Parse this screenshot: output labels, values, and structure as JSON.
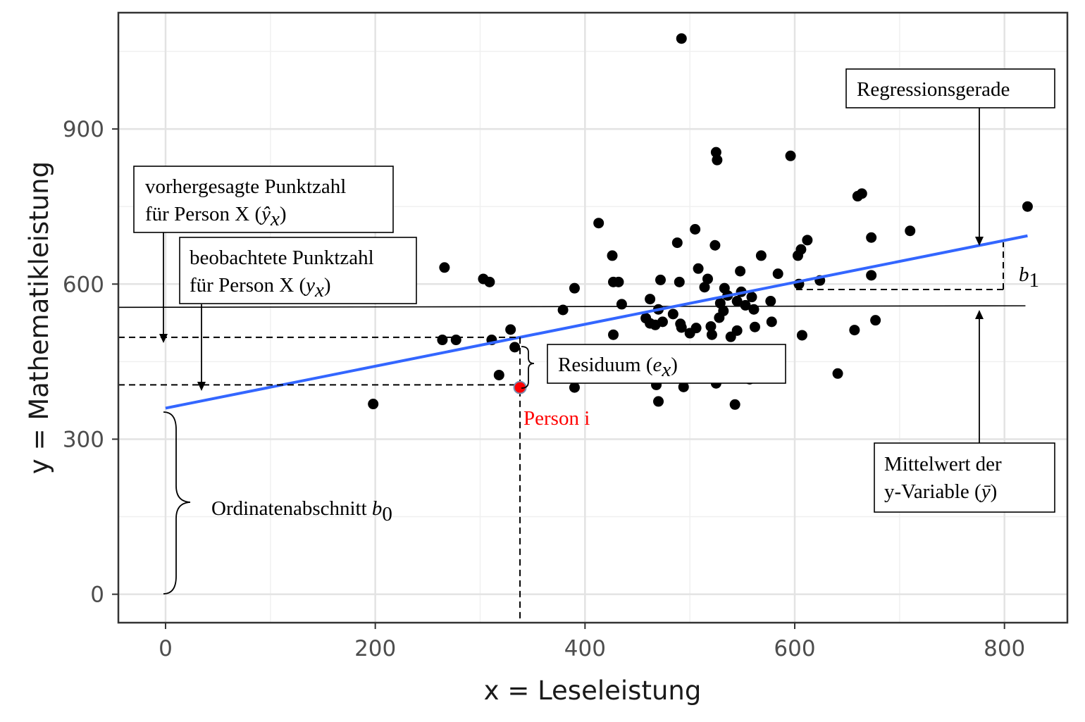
{
  "chart_data": {
    "type": "scatter",
    "xlabel": "x = Leseleistung",
    "ylabel": "y = Mathematikleistung",
    "xlim": [
      -45,
      860
    ],
    "ylim": [
      -55,
      1125
    ],
    "x_ticks": [
      0,
      200,
      400,
      600,
      800
    ],
    "y_ticks": [
      0,
      300,
      600,
      900
    ],
    "grid": true,
    "points": [
      [
        492,
        1075
      ],
      [
        525,
        855
      ],
      [
        526,
        840
      ],
      [
        596,
        848
      ],
      [
        660,
        770
      ],
      [
        664,
        775
      ],
      [
        822,
        750
      ],
      [
        710,
        703
      ],
      [
        413,
        718
      ],
      [
        505,
        706
      ],
      [
        488,
        680
      ],
      [
        524,
        675
      ],
      [
        673,
        690
      ],
      [
        612,
        685
      ],
      [
        606,
        667
      ],
      [
        603,
        655
      ],
      [
        426,
        655
      ],
      [
        266,
        632
      ],
      [
        303,
        610
      ],
      [
        309,
        604
      ],
      [
        427,
        604
      ],
      [
        432,
        604
      ],
      [
        390,
        592
      ],
      [
        472,
        608
      ],
      [
        490,
        604
      ],
      [
        508,
        630
      ],
      [
        514,
        594
      ],
      [
        517,
        610
      ],
      [
        548,
        625
      ],
      [
        568,
        655
      ],
      [
        584,
        620
      ],
      [
        624,
        607
      ],
      [
        604,
        600
      ],
      [
        673,
        617
      ],
      [
        533,
        592
      ],
      [
        536,
        578
      ],
      [
        549,
        585
      ],
      [
        553,
        559
      ],
      [
        545,
        567
      ],
      [
        559,
        575
      ],
      [
        529,
        563
      ],
      [
        561,
        551
      ],
      [
        577,
        567
      ],
      [
        435,
        561
      ],
      [
        462,
        571
      ],
      [
        470,
        551
      ],
      [
        484,
        542
      ],
      [
        379,
        550
      ],
      [
        458,
        534
      ],
      [
        462,
        524
      ],
      [
        467,
        521
      ],
      [
        474,
        527
      ],
      [
        491,
        523
      ],
      [
        506,
        515
      ],
      [
        520,
        518
      ],
      [
        528,
        535
      ],
      [
        532,
        548
      ],
      [
        578,
        527
      ],
      [
        562,
        517
      ],
      [
        657,
        511
      ],
      [
        677,
        530
      ],
      [
        492,
        516
      ],
      [
        500,
        505
      ],
      [
        521,
        502
      ],
      [
        539,
        498
      ],
      [
        545,
        510
      ],
      [
        607,
        501
      ],
      [
        329,
        512
      ],
      [
        264,
        492
      ],
      [
        277,
        492
      ],
      [
        311,
        492
      ],
      [
        333,
        478
      ],
      [
        318,
        424
      ],
      [
        390,
        400
      ],
      [
        468,
        405
      ],
      [
        494,
        401
      ],
      [
        525,
        408
      ],
      [
        557,
        416
      ],
      [
        641,
        427
      ],
      [
        198,
        368
      ],
      [
        470,
        373
      ],
      [
        543,
        367
      ],
      [
        427,
        502
      ]
    ],
    "highlight_point": {
      "x": 338,
      "y": 400,
      "label": "Person i",
      "color": "#ff0000"
    },
    "regression_line": {
      "intercept": 360,
      "slope": 0.4056,
      "x_range": [
        0,
        822
      ],
      "color": "#3366ff"
    },
    "mean_line": {
      "y": 555
    },
    "annotations": {
      "regression": "Regressionsgerade",
      "predicted_line1": "vorhergesagte Punktzahl",
      "predicted_line2": "für Person X (",
      "predicted_math": "ŷ",
      "predicted_sub": "x",
      "observed_line1": "beobachtete Punktzahl",
      "observed_line2": "für Person X (",
      "observed_math": "y",
      "observed_sub": "x",
      "residual_text": "Residuum (",
      "residual_math": "e",
      "residual_sub": "x",
      "mean_line1": "Mittelwert der",
      "mean_line2": "y-Variable (",
      "mean_math": "ȳ",
      "intercept_text": "Ordinatenabschnitt ",
      "intercept_math": "b",
      "intercept_sub": "0",
      "slope_math": "b",
      "slope_sub": "1",
      "close_paren": ")"
    }
  }
}
